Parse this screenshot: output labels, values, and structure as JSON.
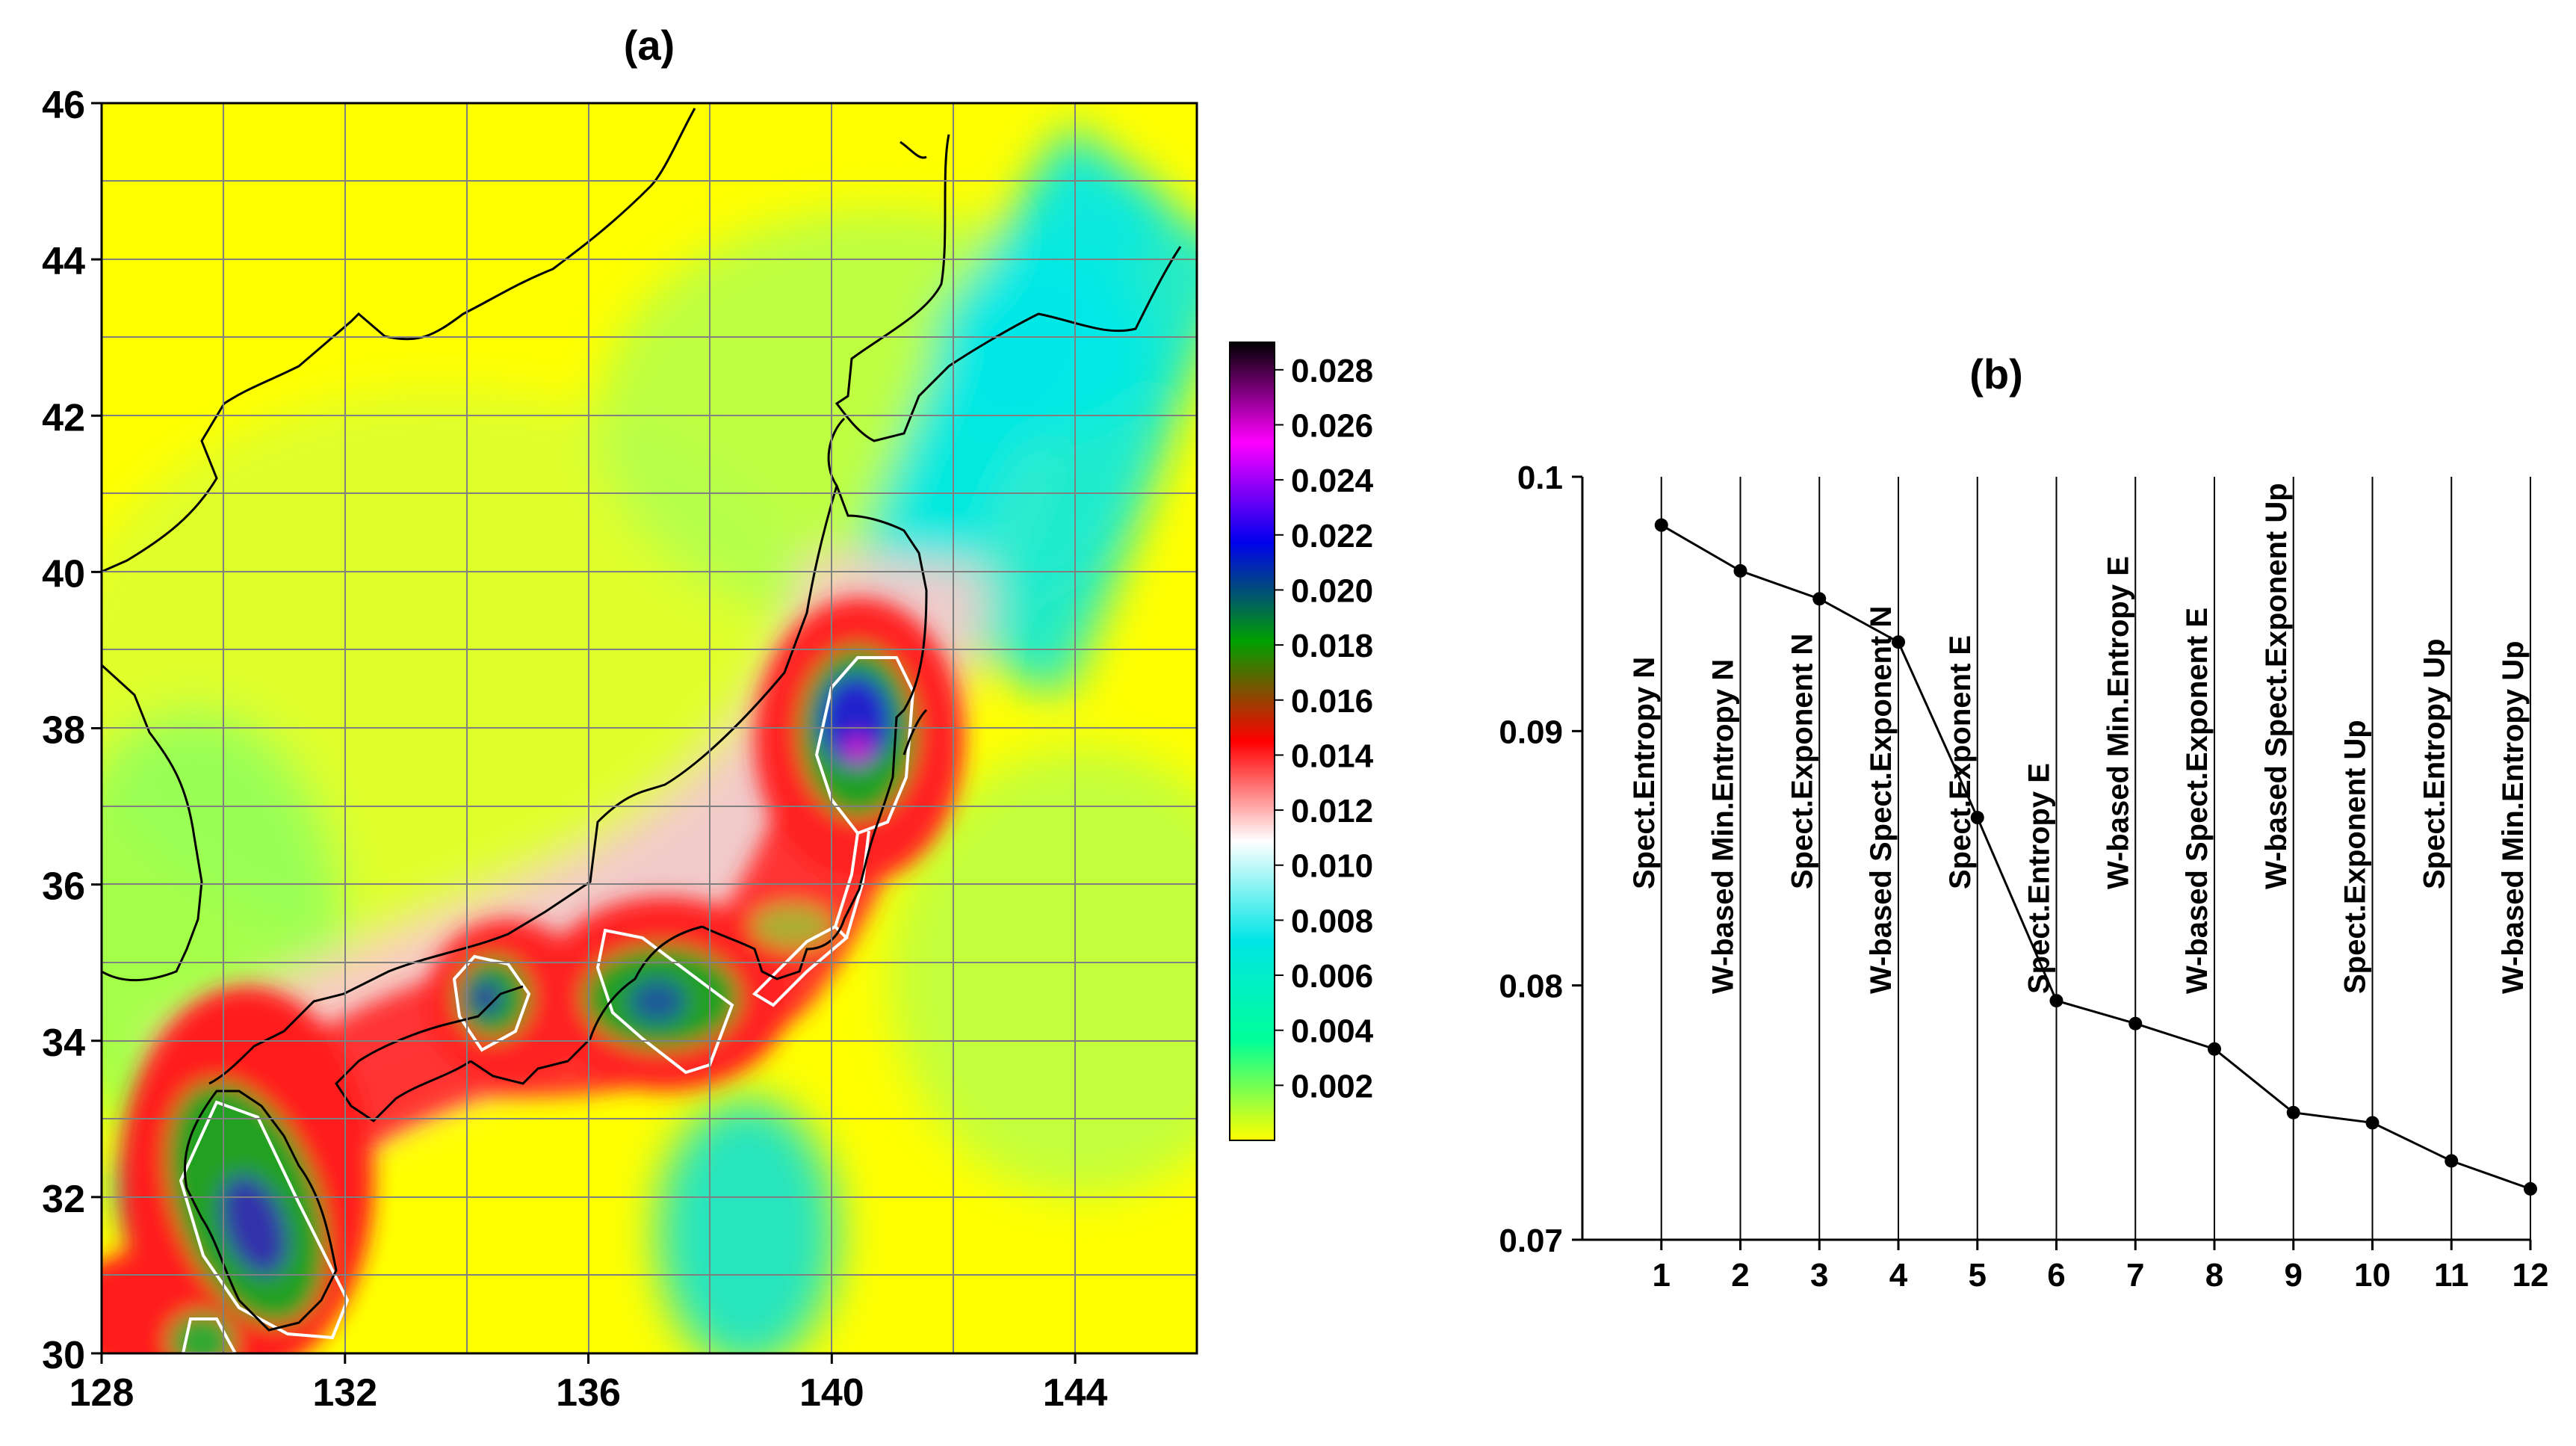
{
  "panel_a": {
    "label": "(a)",
    "chart_data": {
      "type": "heatmap",
      "title": "(a)",
      "x_ticks": [
        128,
        132,
        136,
        140,
        144
      ],
      "y_ticks": [
        30,
        32,
        34,
        36,
        38,
        40,
        42,
        44,
        46
      ],
      "xlim": [
        128,
        146
      ],
      "ylim": [
        30,
        46
      ],
      "grid": true,
      "hotspots": [
        {
          "lon": 140.5,
          "lat": 37.8,
          "peak": 0.026
        },
        {
          "lon": 130.7,
          "lat": 31.5,
          "peak": 0.02
        },
        {
          "lon": 137.2,
          "lat": 34.6,
          "peak": 0.019
        },
        {
          "lon": 134.3,
          "lat": 34.4,
          "peak": 0.02
        },
        {
          "lon": 139.5,
          "lat": 35.2,
          "peak": 0.014
        }
      ],
      "colorbar": {
        "ticks": [
          "0.028",
          "0.026",
          "0.024",
          "0.022",
          "0.020",
          "0.018",
          "0.016",
          "0.014",
          "0.012",
          "0.010",
          "0.008",
          "0.006",
          "0.004",
          "0.002"
        ],
        "range": [
          0.0,
          0.029
        ],
        "colors": [
          "#ffff00",
          "#00ff99",
          "#00e5e5",
          "#ffffff",
          "#ff0000",
          "#00a000",
          "#0000ee",
          "#ff00ff",
          "#000000"
        ]
      }
    }
  },
  "panel_b": {
    "label": "(b)",
    "chart_data": {
      "type": "line",
      "title": "(b)",
      "x": [
        1,
        2,
        3,
        4,
        5,
        6,
        7,
        8,
        9,
        10,
        11,
        12
      ],
      "y": [
        0.0981,
        0.0963,
        0.0952,
        0.0935,
        0.0866,
        0.0794,
        0.0785,
        0.0775,
        0.075,
        0.0746,
        0.0731,
        0.072
      ],
      "point_labels": [
        "Spect.Entropy N",
        "W-based Min.Entropy N",
        "Spect.Exponent N",
        "W-based Spect.Exponent N",
        "Spect.Exponent E",
        "Spect.Entropy E",
        "W-based Min.Entropy E",
        "W-based Spect.Exponent E",
        "W-based Spect.Exponent Up",
        "Spect.Exponent Up",
        "Spect.Entropy Up",
        "W-based Min.Entropy Up"
      ],
      "y_ticks": [
        "0.07",
        "0.08",
        "0.09",
        "0.1"
      ],
      "x_ticks": [
        "1",
        "2",
        "3",
        "4",
        "5",
        "6",
        "7",
        "8",
        "9",
        "10",
        "11",
        "12"
      ],
      "ylim": [
        0.07,
        0.1
      ],
      "xlim": [
        0,
        12
      ]
    }
  }
}
